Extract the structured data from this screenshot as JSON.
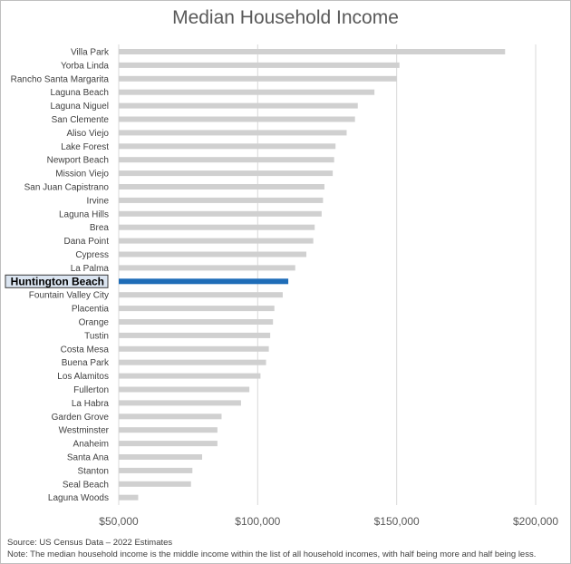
{
  "chart_data": {
    "type": "bar",
    "orientation": "horizontal",
    "title": "Median Household Income",
    "xlabel": "",
    "ylabel": "",
    "xlim": [
      50000,
      200000
    ],
    "xticks": [
      50000,
      100000,
      150000,
      200000
    ],
    "xtick_labels": [
      "$50,000",
      "$100,000",
      "$150,000",
      "$200,000"
    ],
    "grid": true,
    "highlight": "Huntington Beach",
    "categories": [
      "Villa Park",
      "Yorba Linda",
      "Rancho Santa Margarita",
      "Laguna Beach",
      "Laguna Niguel",
      "San Clemente",
      "Aliso Viejo",
      "Lake Forest",
      "Newport Beach",
      "Mission Viejo",
      "San Juan Capistrano",
      "Irvine",
      "Laguna Hills",
      "Brea",
      "Dana Point",
      "Cypress",
      "La Palma",
      "Huntington Beach",
      "Fountain Valley City",
      "Placentia",
      "Orange",
      "Tustin",
      "Costa Mesa",
      "Buena Park",
      "Los Alamitos",
      "Fullerton",
      "La Habra",
      "Garden Grove",
      "Westminster",
      "Anaheim",
      "Santa Ana",
      "Stanton",
      "Seal Beach",
      "Laguna Woods"
    ],
    "values": [
      189000,
      151000,
      150000,
      142000,
      136000,
      135000,
      132000,
      128000,
      127500,
      127000,
      124000,
      123500,
      123000,
      120500,
      120000,
      117500,
      113500,
      111000,
      109000,
      106000,
      105500,
      104500,
      104000,
      103000,
      101000,
      97000,
      94000,
      87000,
      85500,
      85500,
      80000,
      76500,
      76000,
      57000
    ],
    "colors": {
      "bar": "#d0d0d0",
      "highlight": "#1f6db8",
      "grid": "#d9d9d9"
    }
  },
  "footnotes": {
    "source": "Source: US Census Data – 2022 Estimates",
    "note": "Note: The median household income is the middle income within the list of all household incomes, with half being more and half being less."
  }
}
